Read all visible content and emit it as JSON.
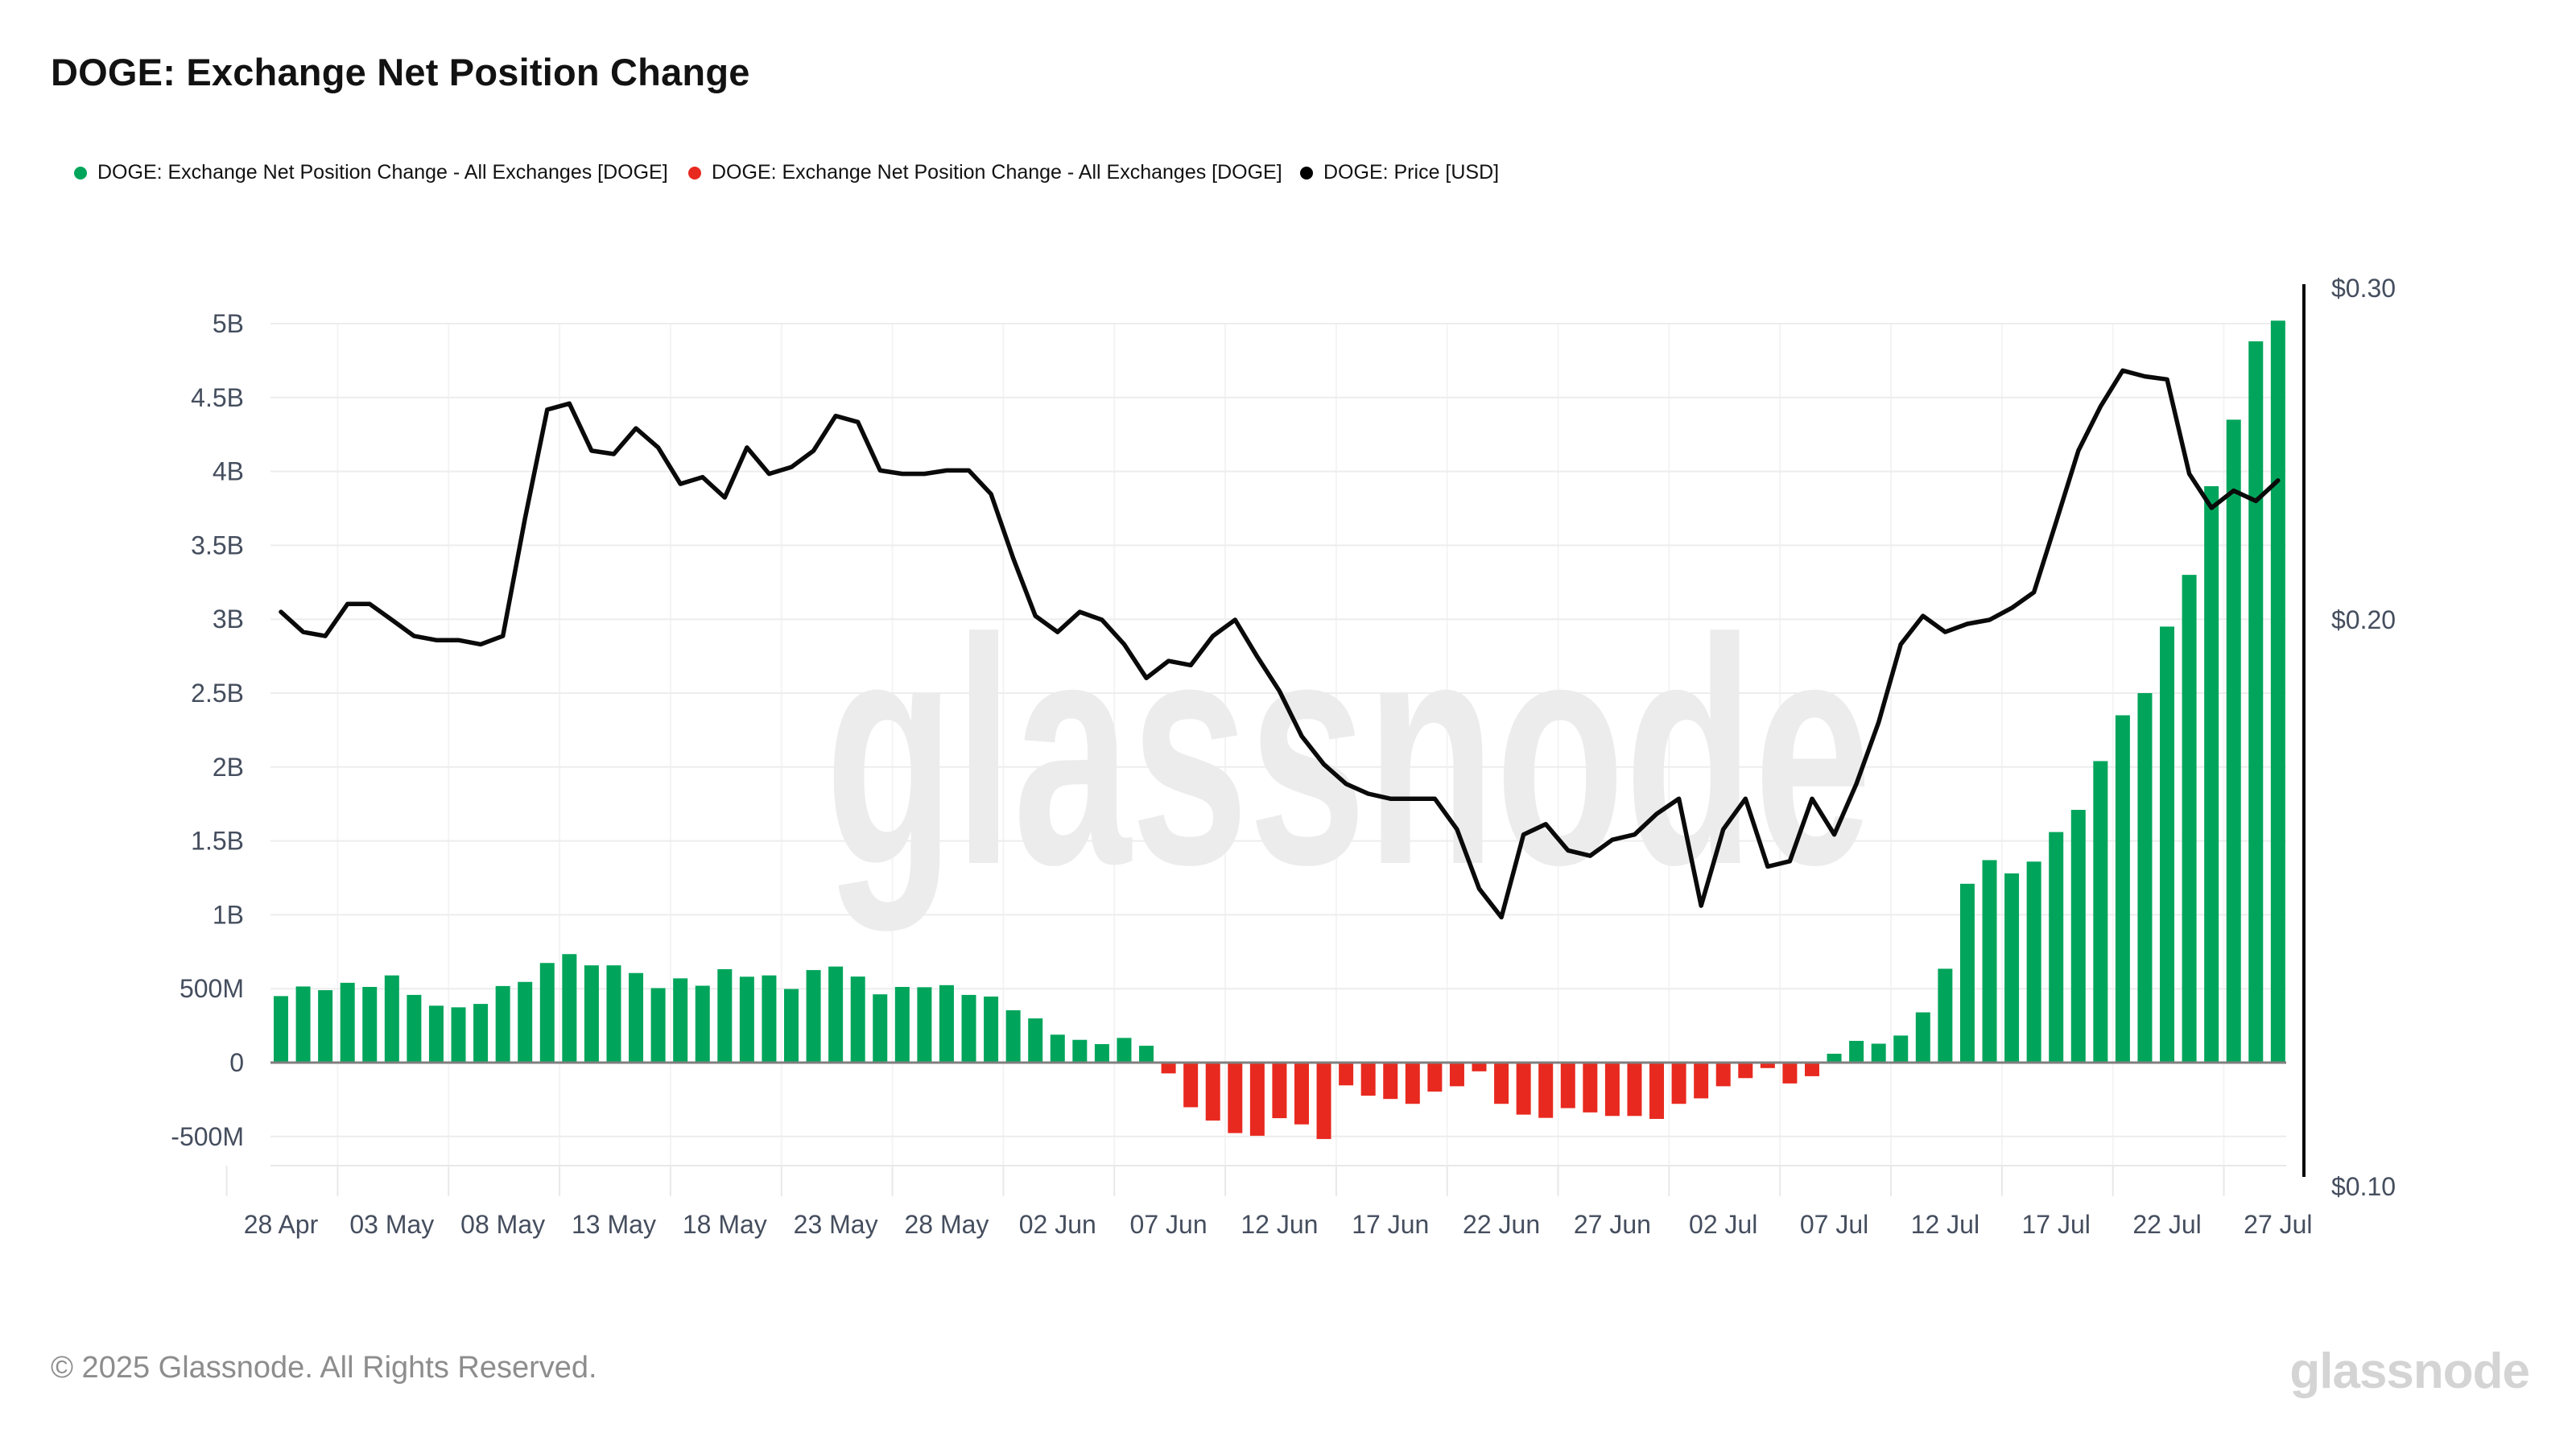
{
  "header": {
    "title": "DOGE: Exchange Net Position Change"
  },
  "legend": {
    "items": [
      {
        "label": "DOGE: Exchange Net Position Change - All Exchanges [DOGE]",
        "color": "#00a55b"
      },
      {
        "label": "DOGE: Exchange Net Position Change - All Exchanges [DOGE]",
        "color": "#e8291f"
      },
      {
        "label": "DOGE: Price [USD]",
        "color": "#000000"
      }
    ]
  },
  "watermark": "glassnode",
  "footer": {
    "copyright": "© 2025 Glassnode. All Rights Reserved.",
    "logo": "glassnode"
  },
  "chart_data": {
    "type": "bar+line",
    "title": "DOGE: Exchange Net Position Change",
    "bar_series_name": "DOGE: Exchange Net Position Change - All Exchanges [DOGE]",
    "line_series_name": "DOGE: Price [USD]",
    "left_axis_tick_labels": [
      "5B",
      "4.5B",
      "4B",
      "3.5B",
      "3B",
      "2.5B",
      "2B",
      "1.5B",
      "1B",
      "500M",
      "0",
      "-500M"
    ],
    "left_axis_tick_values_millions": [
      5000,
      4500,
      4000,
      3500,
      3000,
      2500,
      2000,
      1500,
      1000,
      500,
      0,
      -500
    ],
    "right_axis_tick_labels": [
      "$0.30",
      "$0.20",
      "$0.10"
    ],
    "right_axis_tick_values": [
      0.3,
      0.2,
      0.1
    ],
    "right_axis_scale": "log",
    "x_tick_labels": [
      "28 Apr",
      "03 May",
      "08 May",
      "13 May",
      "18 May",
      "23 May",
      "28 May",
      "02 Jun",
      "07 Jun",
      "12 Jun",
      "17 Jun",
      "22 Jun",
      "27 Jun",
      "02 Jul",
      "07 Jul",
      "12 Jul",
      "17 Jul",
      "22 Jul",
      "27 Jul"
    ],
    "x_tick_every_n_bars": 5,
    "grid": true,
    "legend_position": "top-left",
    "dates": [
      "28 Apr",
      "29 Apr",
      "30 Apr",
      "01 May",
      "02 May",
      "03 May",
      "04 May",
      "05 May",
      "06 May",
      "07 May",
      "08 May",
      "09 May",
      "10 May",
      "11 May",
      "12 May",
      "13 May",
      "14 May",
      "15 May",
      "16 May",
      "17 May",
      "18 May",
      "19 May",
      "20 May",
      "21 May",
      "22 May",
      "23 May",
      "24 May",
      "25 May",
      "26 May",
      "27 May",
      "28 May",
      "29 May",
      "30 May",
      "31 May",
      "01 Jun",
      "02 Jun",
      "03 Jun",
      "04 Jun",
      "05 Jun",
      "06 Jun",
      "07 Jun",
      "08 Jun",
      "09 Jun",
      "10 Jun",
      "11 Jun",
      "12 Jun",
      "13 Jun",
      "14 Jun",
      "15 Jun",
      "16 Jun",
      "17 Jun",
      "18 Jun",
      "19 Jun",
      "20 Jun",
      "21 Jun",
      "22 Jun",
      "23 Jun",
      "24 Jun",
      "25 Jun",
      "26 Jun",
      "27 Jun",
      "28 Jun",
      "29 Jun",
      "30 Jun",
      "01 Jul",
      "02 Jul",
      "03 Jul",
      "04 Jul",
      "05 Jul",
      "06 Jul",
      "07 Jul",
      "08 Jul",
      "09 Jul",
      "10 Jul",
      "11 Jul",
      "12 Jul",
      "13 Jul",
      "14 Jul",
      "15 Jul",
      "16 Jul",
      "17 Jul",
      "18 Jul",
      "19 Jul",
      "20 Jul",
      "21 Jul",
      "22 Jul",
      "23 Jul",
      "24 Jul",
      "25 Jul",
      "26 Jul",
      "27 Jul"
    ],
    "bar_values_millions": [
      450,
      515,
      490,
      540,
      512,
      590,
      458,
      385,
      374,
      397,
      518,
      546,
      674,
      734,
      658,
      658,
      606,
      504,
      570,
      520,
      632,
      581,
      590,
      498,
      626,
      650,
      582,
      462,
      512,
      510,
      524,
      458,
      447,
      354,
      299,
      189,
      154,
      125,
      167,
      114,
      -73,
      -302,
      -392,
      -477,
      -495,
      -376,
      -418,
      -517,
      -154,
      -224,
      -246,
      -279,
      -196,
      -160,
      -59,
      -279,
      -352,
      -374,
      -308,
      -337,
      -361,
      -361,
      -381,
      -279,
      -242,
      -160,
      -105,
      -37,
      -141,
      -92,
      60,
      147,
      128,
      183,
      340,
      635,
      1210,
      1370,
      1280,
      1360,
      1560,
      1710,
      2040,
      2350,
      2500,
      2950,
      3300,
      3900,
      4350,
      4880,
      5020
    ],
    "price_values_usd": [
      0.202,
      0.197,
      0.196,
      0.204,
      0.204,
      0.2,
      0.196,
      0.195,
      0.195,
      0.194,
      0.196,
      0.227,
      0.26,
      0.262,
      0.247,
      0.246,
      0.254,
      0.248,
      0.237,
      0.239,
      0.233,
      0.248,
      0.24,
      0.242,
      0.247,
      0.258,
      0.256,
      0.241,
      0.24,
      0.24,
      0.241,
      0.241,
      0.234,
      0.216,
      0.201,
      0.197,
      0.202,
      0.2,
      0.194,
      0.186,
      0.19,
      0.189,
      0.196,
      0.2,
      0.191,
      0.183,
      0.173,
      0.167,
      0.163,
      0.161,
      0.16,
      0.16,
      0.16,
      0.154,
      0.143,
      0.138,
      0.153,
      0.155,
      0.15,
      0.149,
      0.152,
      0.153,
      0.157,
      0.16,
      0.14,
      0.154,
      0.16,
      0.147,
      0.148,
      0.16,
      0.153,
      0.163,
      0.176,
      0.194,
      0.201,
      0.197,
      0.199,
      0.2,
      0.203,
      0.207,
      0.226,
      0.247,
      0.261,
      0.273,
      0.271,
      0.27,
      0.24,
      0.23,
      0.235,
      0.232,
      0.238
    ],
    "colors": {
      "positive": "#00a55b",
      "negative": "#e8291f",
      "price_line": "#0a0a0a",
      "grid": "#ededed",
      "axis_text": "#454e5e",
      "zero_line": "#7f7f7f",
      "watermark": "#ececec"
    }
  }
}
